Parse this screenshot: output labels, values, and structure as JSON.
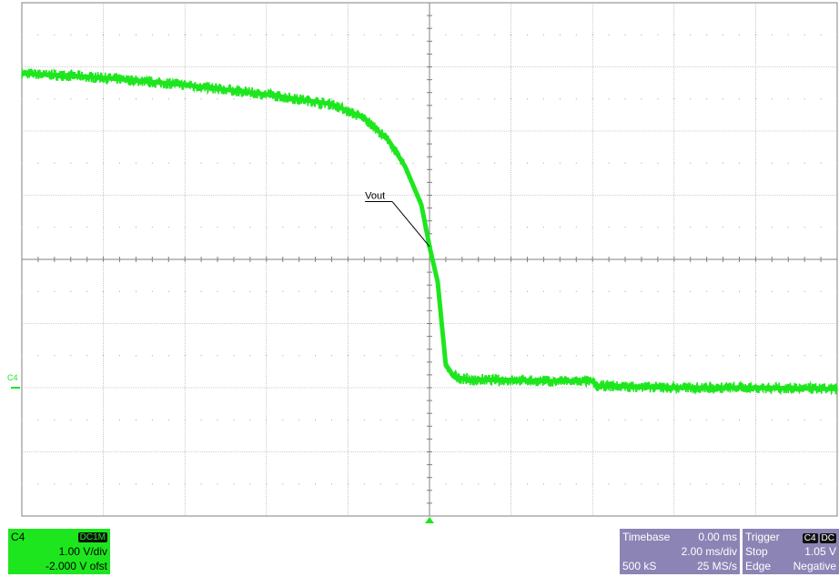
{
  "chart_data": {
    "type": "line",
    "title": "",
    "xlabel": "",
    "ylabel": "",
    "grid": true,
    "x_divisions": 10,
    "y_divisions": 8,
    "xlim": [
      -10,
      10
    ],
    "ylim": [
      -2,
      6
    ],
    "series": [
      {
        "name": "Vout",
        "color": "#1ee61e",
        "x": [
          -10,
          -8,
          -6,
          -4,
          -2.4,
          -1.6,
          -1.0,
          -0.6,
          -0.2,
          0.0,
          0.2,
          0.4,
          0.6,
          1.0,
          2.0,
          3.0,
          4.0,
          4.1,
          6.0,
          8.0,
          10.0
        ],
        "y": [
          4.9,
          4.83,
          4.72,
          4.57,
          4.42,
          4.2,
          3.85,
          3.45,
          2.85,
          2.2,
          1.65,
          0.35,
          0.17,
          0.12,
          0.12,
          0.1,
          0.1,
          0.03,
          0.0,
          0.0,
          -0.02
        ]
      }
    ],
    "annotations": [
      {
        "text": "Vout",
        "x": -0.6,
        "y": 2.9
      }
    ],
    "channel_marker": "C4"
  },
  "channel_panel": {
    "name": "C4",
    "coupling": "DC1M",
    "scale": "1.00 V/div",
    "offset": "-2.000 V ofst",
    "color": "#1ee61e"
  },
  "timebase_panel": {
    "label": "Timebase",
    "delay": "0.00 ms",
    "scale": "2.00 ms/div",
    "samples": "500 kS",
    "rate": "25 MS/s",
    "color": "#8c84b5"
  },
  "trigger_panel": {
    "label": "Trigger",
    "source": "C4",
    "coupling": "DC",
    "mode": "Stop",
    "level": "1.05 V",
    "type": "Edge",
    "slope": "Negative"
  }
}
